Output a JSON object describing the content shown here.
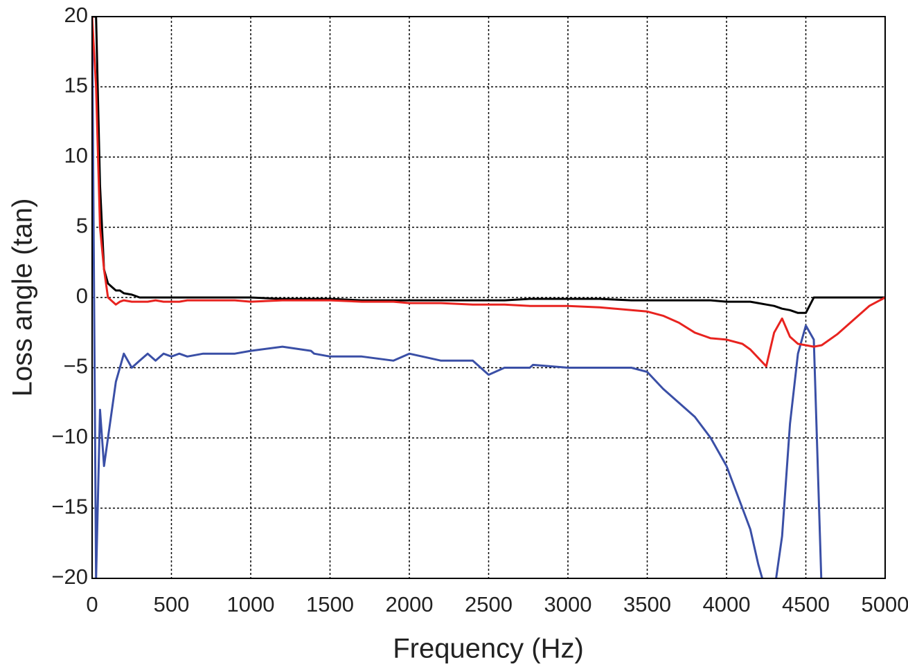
{
  "chart_data": {
    "type": "line",
    "x_label": "Frequency (Hz)",
    "y_label": "Loss angle (tan)",
    "x": [
      0,
      25,
      50,
      75,
      100,
      150,
      175,
      200,
      250,
      300,
      350,
      400,
      450,
      500,
      550,
      600,
      700,
      800,
      900,
      1000,
      1200,
      1380,
      1400,
      1500,
      1700,
      1900,
      2000,
      2200,
      2400,
      2500,
      2600,
      2760,
      2780,
      3000,
      3200,
      3400,
      3500,
      3600,
      3700,
      3800,
      3900,
      4000,
      4100,
      4150,
      4200,
      4250,
      4300,
      4350,
      4400,
      4450,
      4500,
      4550,
      4600,
      4700,
      4800,
      4900,
      5000
    ],
    "series": [
      {
        "color": "#3a4fa6",
        "values": [
          20,
          -20,
          -8,
          -12,
          -10,
          -6,
          -5,
          -4,
          -5,
          -4.5,
          -4,
          -4.5,
          -4,
          -4.2,
          -4,
          -4.2,
          -4,
          -4,
          -4,
          -3.8,
          -3.5,
          -3.8,
          -4,
          -4.2,
          -4.2,
          -4.5,
          -4,
          -4.5,
          -4.5,
          -5.5,
          -5,
          -5,
          -4.8,
          -5,
          -5,
          -5,
          -5.3,
          -6.5,
          -7.5,
          -8.5,
          -10,
          -12,
          -15,
          -16.5,
          -19,
          -21,
          -21,
          -17,
          -9,
          -4,
          -2,
          -3,
          -21,
          -21,
          -21,
          -21,
          -20
        ]
      },
      {
        "color": "#000000",
        "values": [
          20,
          20,
          8,
          2,
          1,
          0.5,
          0.5,
          0.3,
          0.2,
          0,
          0,
          0,
          0,
          0,
          0,
          0,
          0,
          0,
          0,
          0,
          -0.1,
          -0.1,
          -0.1,
          -0.1,
          -0.2,
          -0.2,
          -0.2,
          -0.2,
          -0.2,
          -0.2,
          -0.2,
          -0.1,
          -0.1,
          -0.1,
          -0.1,
          -0.2,
          -0.2,
          -0.2,
          -0.2,
          -0.2,
          -0.2,
          -0.3,
          -0.3,
          -0.3,
          -0.4,
          -0.5,
          -0.6,
          -0.8,
          -0.9,
          -1.1,
          -1.1,
          0,
          0,
          0,
          0,
          0,
          0
        ]
      },
      {
        "color": "#e8231f",
        "values": [
          20,
          15,
          5,
          2,
          0,
          -0.5,
          -0.3,
          -0.2,
          -0.3,
          -0.3,
          -0.3,
          -0.2,
          -0.3,
          -0.3,
          -0.3,
          -0.2,
          -0.2,
          -0.2,
          -0.2,
          -0.3,
          -0.2,
          -0.2,
          -0.2,
          -0.2,
          -0.3,
          -0.3,
          -0.4,
          -0.4,
          -0.5,
          -0.5,
          -0.5,
          -0.6,
          -0.6,
          -0.6,
          -0.7,
          -0.9,
          -1,
          -1.3,
          -1.8,
          -2.5,
          -2.9,
          -3,
          -3.3,
          -3.7,
          -4.3,
          -4.9,
          -2.5,
          -1.5,
          -2.8,
          -3.3,
          -3.4,
          -3.5,
          -3.4,
          -2.6,
          -1.6,
          -0.6,
          0
        ]
      }
    ],
    "xlim": [
      0,
      5000
    ],
    "ylim": [
      -20,
      20
    ],
    "xticks": [
      0,
      500,
      1000,
      1500,
      2000,
      2500,
      3000,
      3500,
      4000,
      4500,
      5000
    ],
    "yticks": [
      20,
      15,
      10,
      5,
      0,
      {
        "value": -5,
        "label": "−5"
      },
      {
        "value": -10,
        "label": "−10"
      },
      {
        "value": -15,
        "label": "−15"
      },
      {
        "value": -20,
        "label": "−20"
      }
    ],
    "grid": true
  }
}
